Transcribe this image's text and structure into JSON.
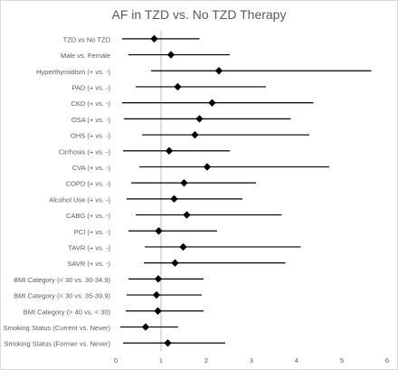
{
  "chart_data": {
    "type": "forest",
    "title": "AF in TZD vs. No TZD Therapy",
    "xlabel": "",
    "ylabel": "",
    "xlim": [
      0,
      6
    ],
    "xticks": [
      0,
      1,
      2,
      3,
      4,
      5,
      6
    ],
    "reference_line": 1,
    "grid": false,
    "legend": "none",
    "colors": {
      "marker": "#000000",
      "ci_line": "#000000",
      "reference_line": "#bfbfbf",
      "text": "#595959",
      "border": "#d9d9d9"
    },
    "rows": [
      {
        "label": "TZD vs No TZD",
        "estimate": 0.85,
        "lower": 0.14,
        "upper": 1.85
      },
      {
        "label": "Male vs. Female",
        "estimate": 1.22,
        "lower": 0.28,
        "upper": 2.52
      },
      {
        "label": "Hyperthyroidism (+ vs. -)",
        "estimate": 2.28,
        "lower": 0.78,
        "upper": 5.65
      },
      {
        "label": "PAD (+ vs. -)",
        "estimate": 1.37,
        "lower": 0.44,
        "upper": 3.32
      },
      {
        "label": "CKD (+ vs. -)",
        "estimate": 2.13,
        "lower": 0.14,
        "upper": 4.37
      },
      {
        "label": "OSA (+ vs. -)",
        "estimate": 1.85,
        "lower": 0.18,
        "upper": 3.87
      },
      {
        "label": "OHS (+ vs. -)",
        "estimate": 1.75,
        "lower": 0.58,
        "upper": 4.28
      },
      {
        "label": "Cirrhosis (+ vs. -)",
        "estimate": 1.18,
        "lower": 0.16,
        "upper": 2.52
      },
      {
        "label": "CVA (+ vs. -)",
        "estimate": 2.02,
        "lower": 0.52,
        "upper": 4.72
      },
      {
        "label": "COPD (+ vs. -)",
        "estimate": 1.51,
        "lower": 0.34,
        "upper": 3.1
      },
      {
        "label": "Alcohol Use (+ vs. -)",
        "estimate": 1.29,
        "lower": 0.24,
        "upper": 2.8
      },
      {
        "label": "CABG (+ vs. -)",
        "estimate": 1.57,
        "lower": 0.44,
        "upper": 3.67
      },
      {
        "label": "PCI (+ vs. -)",
        "estimate": 0.95,
        "lower": 0.28,
        "upper": 2.24
      },
      {
        "label": "TAVR (+ vs. -)",
        "estimate": 1.49,
        "lower": 0.64,
        "upper": 4.09
      },
      {
        "label": "SAVR (+ vs. -)",
        "estimate": 1.31,
        "lower": 0.62,
        "upper": 3.75
      },
      {
        "label": "BMI Category (< 30 vs. 30-34.9)",
        "estimate": 0.94,
        "lower": 0.28,
        "upper": 1.94
      },
      {
        "label": "BMI Category (< 30 vs. 35-39.9)",
        "estimate": 0.9,
        "lower": 0.24,
        "upper": 1.9
      },
      {
        "label": "BMI Category (> 40 vs. < 30)",
        "estimate": 0.93,
        "lower": 0.22,
        "upper": 1.94
      },
      {
        "label": "Smoking Status (Current vs. Never)",
        "estimate": 0.66,
        "lower": 0.1,
        "upper": 1.38
      },
      {
        "label": "Smoking Status (Former vs. Never)",
        "estimate": 1.15,
        "lower": 0.16,
        "upper": 2.42
      }
    ]
  }
}
